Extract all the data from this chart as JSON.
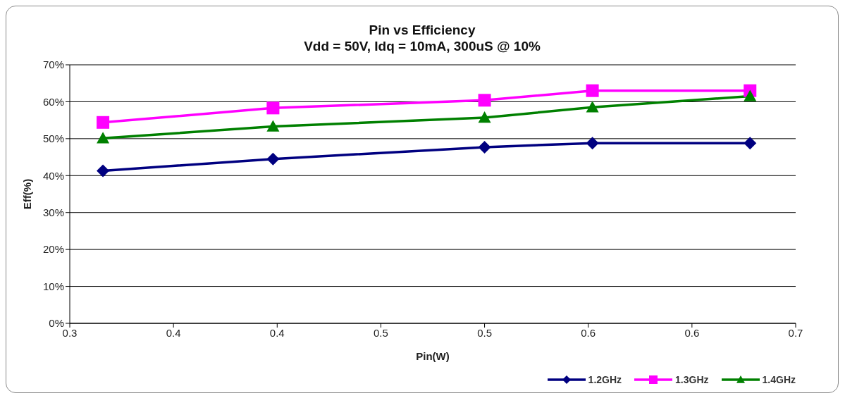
{
  "chart_data": {
    "type": "line",
    "title": "Pin vs Efficiency",
    "subtitle": "Vdd = 50V, Idq = 10mA, 300uS @ 10%",
    "xlabel": "Pin(W)",
    "ylabel": "Eff(%)",
    "x": [
      0.316,
      0.398,
      0.5,
      0.552,
      0.628
    ],
    "series": [
      {
        "name": "1.2GHz",
        "color": "#000080",
        "marker": "diamond",
        "values": [
          41.3,
          44.5,
          47.7,
          48.8,
          48.8
        ]
      },
      {
        "name": "1.3GHz",
        "color": "#ff00ff",
        "marker": "square",
        "values": [
          54.4,
          58.3,
          60.4,
          63.0,
          63.0
        ]
      },
      {
        "name": "1.4GHz",
        "color": "#008000",
        "marker": "triangle",
        "values": [
          50.1,
          53.3,
          55.7,
          58.5,
          61.5
        ]
      }
    ],
    "xlim": [
      0.3,
      0.65
    ],
    "xticks": [
      {
        "value": 0.3,
        "label": "0.3"
      },
      {
        "value": 0.35,
        "label": "0.4"
      },
      {
        "value": 0.4,
        "label": "0.4"
      },
      {
        "value": 0.45,
        "label": "0.5"
      },
      {
        "value": 0.5,
        "label": "0.5"
      },
      {
        "value": 0.55,
        "label": "0.6"
      },
      {
        "value": 0.6,
        "label": "0.6"
      },
      {
        "value": 0.65,
        "label": "0.7"
      }
    ],
    "ylim": [
      0,
      70
    ],
    "yticks": [
      {
        "value": 0,
        "label": "0%"
      },
      {
        "value": 10,
        "label": "10%"
      },
      {
        "value": 20,
        "label": "20%"
      },
      {
        "value": 30,
        "label": "30%"
      },
      {
        "value": 40,
        "label": "40%"
      },
      {
        "value": 50,
        "label": "50%"
      },
      {
        "value": 60,
        "label": "60%"
      },
      {
        "value": 70,
        "label": "70%"
      }
    ],
    "grid": "y",
    "legend": "bottom right",
    "line_style": "solid"
  }
}
